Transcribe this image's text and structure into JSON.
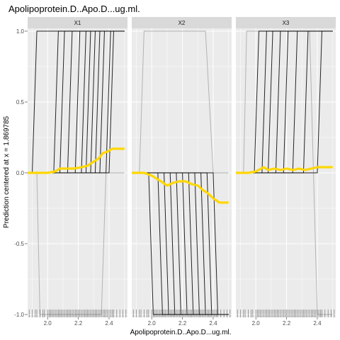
{
  "chart_data": {
    "type": "line",
    "title": "Apolipoprotein.D..Apo.D...ug.ml.",
    "xlabel": "Apolipoprotein.D..Apo.D...ug.ml.",
    "ylabel": "Prediction centered at x = 1.869785",
    "xlim": [
      1.87,
      2.52
    ],
    "ylim": [
      -1.02,
      1.02
    ],
    "x_ticks": [
      2.0,
      2.2,
      2.4
    ],
    "x_tick_labels": [
      "2.0",
      "2.2",
      "2.4"
    ],
    "y_ticks": [
      1.0,
      0.5,
      0.0,
      -0.5,
      -1.0
    ],
    "y_tick_labels": [
      "1.0",
      "0.5",
      "0.0",
      "-0.5",
      "-1.0"
    ],
    "colors": {
      "panel_bg": "#ebebeb",
      "strip_bg": "#d9d9d9",
      "grid": "#ffffff",
      "ice_line": "#000000",
      "centered_line": "#ffd700"
    },
    "rug_x": [
      1.88,
      1.9,
      1.92,
      1.93,
      1.95,
      1.97,
      1.98,
      2.0,
      2.01,
      2.02,
      2.03,
      2.04,
      2.05,
      2.06,
      2.07,
      2.08,
      2.09,
      2.1,
      2.11,
      2.12,
      2.13,
      2.14,
      2.15,
      2.16,
      2.17,
      2.18,
      2.19,
      2.2,
      2.21,
      2.22,
      2.23,
      2.24,
      2.25,
      2.26,
      2.27,
      2.28,
      2.29,
      2.3,
      2.31,
      2.32,
      2.33,
      2.34,
      2.35,
      2.36,
      2.37,
      2.38,
      2.39,
      2.4,
      2.41,
      2.42,
      2.43,
      2.45,
      2.47,
      2.49,
      2.51
    ],
    "panels": [
      {
        "label": "X1",
        "ice_curves": [
          {
            "switch_x": 1.92,
            "start": 0,
            "end": 1
          },
          {
            "switch_x": 2.06,
            "start": 0,
            "end": 1
          },
          {
            "switch_x": 2.1,
            "start": 0,
            "end": 1
          },
          {
            "switch_x": 2.15,
            "start": 0,
            "end": 1
          },
          {
            "switch_x": 2.2,
            "start": 0,
            "end": 1
          },
          {
            "switch_x": 2.24,
            "start": 0,
            "end": 1
          },
          {
            "switch_x": 2.27,
            "start": 0,
            "end": 1
          },
          {
            "switch_x": 2.3,
            "start": 0,
            "end": 1
          },
          {
            "switch_x": 2.33,
            "start": 0,
            "end": 1
          },
          {
            "switch_x": 2.36,
            "start": 0,
            "end": 1
          },
          {
            "switch_x": 2.4,
            "start": 0,
            "end": 1
          },
          {
            "switch_x": 2.42,
            "start": 0,
            "end": 1
          }
        ],
        "grey_curve": {
          "x": [
            1.88,
            1.93,
            1.95,
            2.05,
            2.35,
            2.38,
            2.5
          ],
          "y": [
            0,
            0,
            -1,
            -1,
            -1,
            0,
            0
          ]
        },
        "centered_line": {
          "x": [
            1.87,
            1.95,
            2.0,
            2.05,
            2.08,
            2.12,
            2.17,
            2.22,
            2.26,
            2.3,
            2.33,
            2.36,
            2.39,
            2.42,
            2.46,
            2.5
          ],
          "y": [
            0,
            0,
            0,
            0.01,
            0.03,
            0.03,
            0.03,
            0.04,
            0.05,
            0.08,
            0.1,
            0.14,
            0.15,
            0.17,
            0.17,
            0.17
          ]
        }
      },
      {
        "label": "X2",
        "ice_curves": [
          {
            "switch_x": 2.0,
            "start": 0,
            "end": -1
          },
          {
            "switch_x": 2.06,
            "start": 0,
            "end": -1
          },
          {
            "switch_x": 2.1,
            "start": 0,
            "end": -1
          },
          {
            "switch_x": 2.14,
            "start": 0,
            "end": -1
          },
          {
            "switch_x": 2.18,
            "start": 0,
            "end": -1
          },
          {
            "switch_x": 2.22,
            "start": 0,
            "end": -1
          },
          {
            "switch_x": 2.26,
            "start": 0,
            "end": -1
          },
          {
            "switch_x": 2.3,
            "start": 0,
            "end": -1
          },
          {
            "switch_x": 2.34,
            "start": 0,
            "end": -1
          },
          {
            "switch_x": 2.38,
            "start": 0,
            "end": -1
          },
          {
            "switch_x": 2.42,
            "start": 0,
            "end": -1
          }
        ],
        "grey_curve": {
          "x": [
            1.88,
            1.92,
            1.95,
            2.35,
            2.4,
            2.5
          ],
          "y": [
            0,
            0,
            1,
            1,
            0,
            0
          ]
        },
        "centered_line": {
          "x": [
            1.87,
            1.92,
            1.95,
            2.0,
            2.03,
            2.06,
            2.1,
            2.14,
            2.18,
            2.22,
            2.26,
            2.3,
            2.33,
            2.36,
            2.4,
            2.44,
            2.5
          ],
          "y": [
            0,
            0,
            0,
            -0.02,
            -0.04,
            -0.06,
            -0.09,
            -0.07,
            -0.06,
            -0.06,
            -0.08,
            -0.09,
            -0.12,
            -0.14,
            -0.18,
            -0.21,
            -0.21
          ]
        }
      },
      {
        "label": "X3",
        "ice_curves": [
          {
            "switch_x": 2.01,
            "start": 0,
            "end": 1
          },
          {
            "switch_x": 2.06,
            "start": 0,
            "end": 1
          },
          {
            "switch_x": 2.1,
            "start": 0,
            "end": 1
          },
          {
            "switch_x": 2.15,
            "start": 0,
            "end": 1
          },
          {
            "switch_x": 2.2,
            "start": 0,
            "end": 1
          },
          {
            "switch_x": 2.26,
            "start": 0,
            "end": 1
          },
          {
            "switch_x": 2.33,
            "start": 0,
            "end": 1
          },
          {
            "switch_x": 2.42,
            "start": 0,
            "end": 1
          }
        ],
        "grey_curve": {
          "x": [
            1.88,
            1.92,
            1.94,
            2.35,
            2.4,
            2.5
          ],
          "y": [
            0,
            0,
            1,
            1,
            -1,
            -1
          ]
        },
        "centered_line": {
          "x": [
            1.87,
            1.95,
            2.0,
            2.05,
            2.08,
            2.12,
            2.16,
            2.2,
            2.24,
            2.28,
            2.32,
            2.36,
            2.4,
            2.45,
            2.5
          ],
          "y": [
            0,
            0,
            0.01,
            0.04,
            0.02,
            0.03,
            0.02,
            0.03,
            0.02,
            0.03,
            0.02,
            0.03,
            0.04,
            0.04,
            0.04
          ]
        }
      }
    ]
  }
}
